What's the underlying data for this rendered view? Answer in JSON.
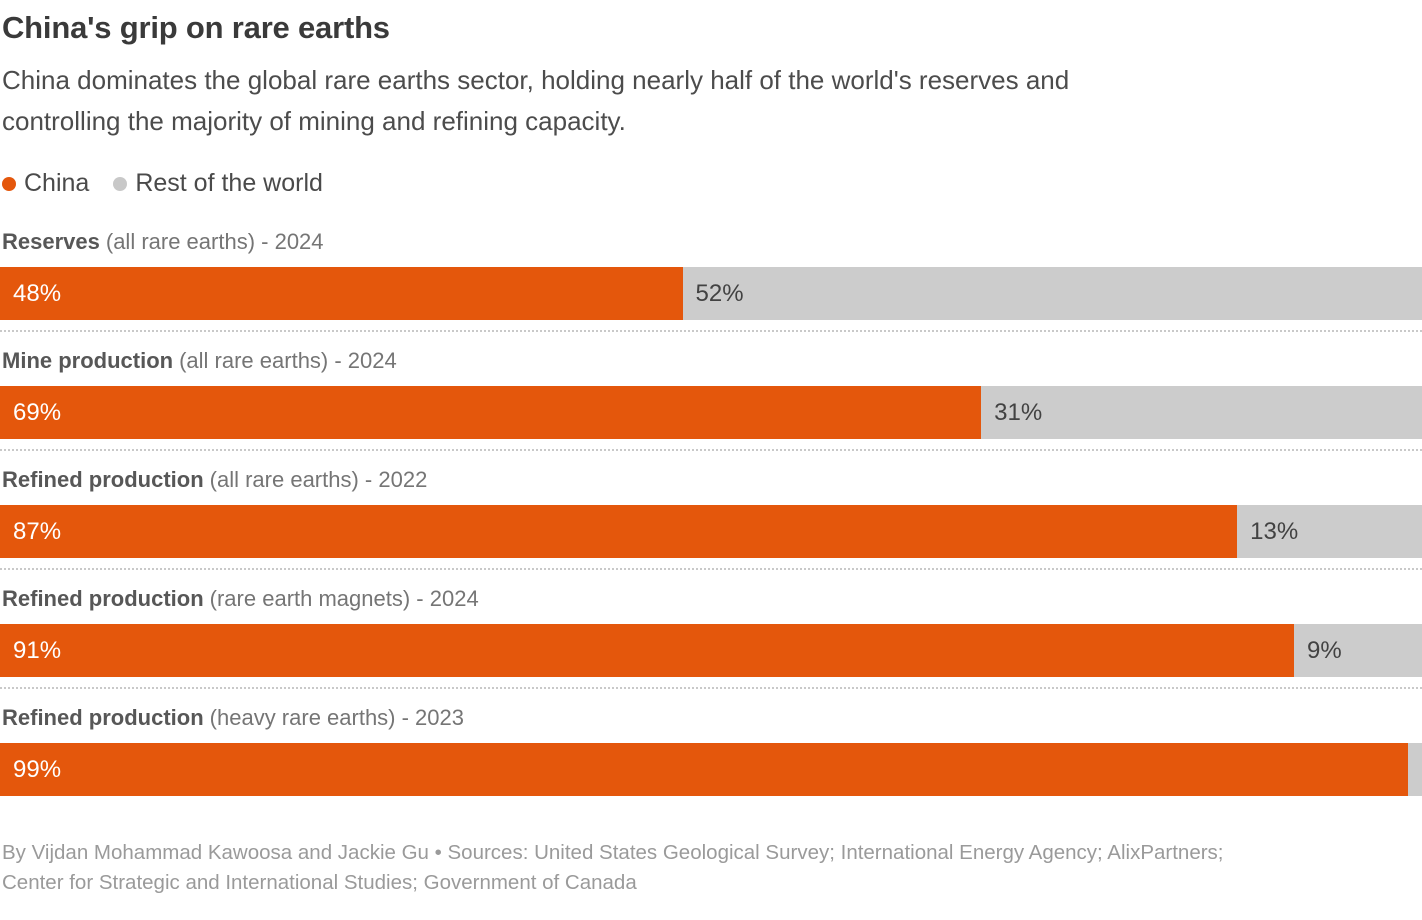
{
  "page": {
    "background": "#ffffff"
  },
  "header": {
    "title": "China's grip on rare earths",
    "subtitle_line1": "China dominates the global rare earths sector, holding nearly half of the world's reserves and",
    "subtitle_line2": "controlling the majority of mining and refining capacity."
  },
  "legend": {
    "items": [
      {
        "label": "China",
        "color": "#e4570c"
      },
      {
        "label": "Rest of the world",
        "color": "#c8c8c8"
      }
    ]
  },
  "chart_data": {
    "type": "bar",
    "orientation": "horizontal",
    "stacked": true,
    "title": "China's grip on rare earths",
    "subtitle": "China dominates the global rare earths sector, holding nearly half of the world's reserves and controlling the majority of mining and refining capacity.",
    "unit": "%",
    "xlim": [
      0,
      100
    ],
    "grid": false,
    "legend_position": "top",
    "categories": [
      "Reserves (all rare earths) - 2024",
      "Mine production (all rare earths) - 2024",
      "Refined production (all rare earths) - 2022",
      "Refined production (rare earth magnets) - 2024",
      "Refined production (heavy rare earths) - 2023"
    ],
    "series": [
      {
        "name": "China",
        "color": "#e4570c",
        "values": [
          48,
          69,
          87,
          91,
          99
        ]
      },
      {
        "name": "Rest of the world",
        "color": "#cccccc",
        "values": [
          52,
          31,
          13,
          9,
          1
        ]
      }
    ],
    "rows": [
      {
        "metric": "Reserves",
        "qualifier": "(all rare earths) - 2024",
        "china_value": 48,
        "rest_value": 52,
        "china_label": "48%",
        "rest_label": "52%"
      },
      {
        "metric": "Mine production",
        "qualifier": "(all rare earths) - 2024",
        "china_value": 69,
        "rest_value": 31,
        "china_label": "69%",
        "rest_label": "31%"
      },
      {
        "metric": "Refined production",
        "qualifier": "(all rare earths) - 2022",
        "china_value": 87,
        "rest_value": 13,
        "china_label": "87%",
        "rest_label": "13%"
      },
      {
        "metric": "Refined production",
        "qualifier": "(rare earth magnets) - 2024",
        "china_value": 91,
        "rest_value": 9,
        "china_label": "91%",
        "rest_label": "9%"
      },
      {
        "metric": "Refined production",
        "qualifier": "(heavy rare earths) - 2023",
        "china_value": 99,
        "rest_value": 1,
        "china_label": "99%",
        "rest_label": ""
      }
    ],
    "colors": {
      "china": "#e4570c",
      "rest": "#cccccc"
    }
  },
  "footer": {
    "line1": "By Vijdan Mohammad Kawoosa and Jackie Gu • Sources: United States Geological Survey; International Energy Agency; AlixPartners;",
    "line2": "Center for Strategic and International Studies; Government of Canada"
  }
}
